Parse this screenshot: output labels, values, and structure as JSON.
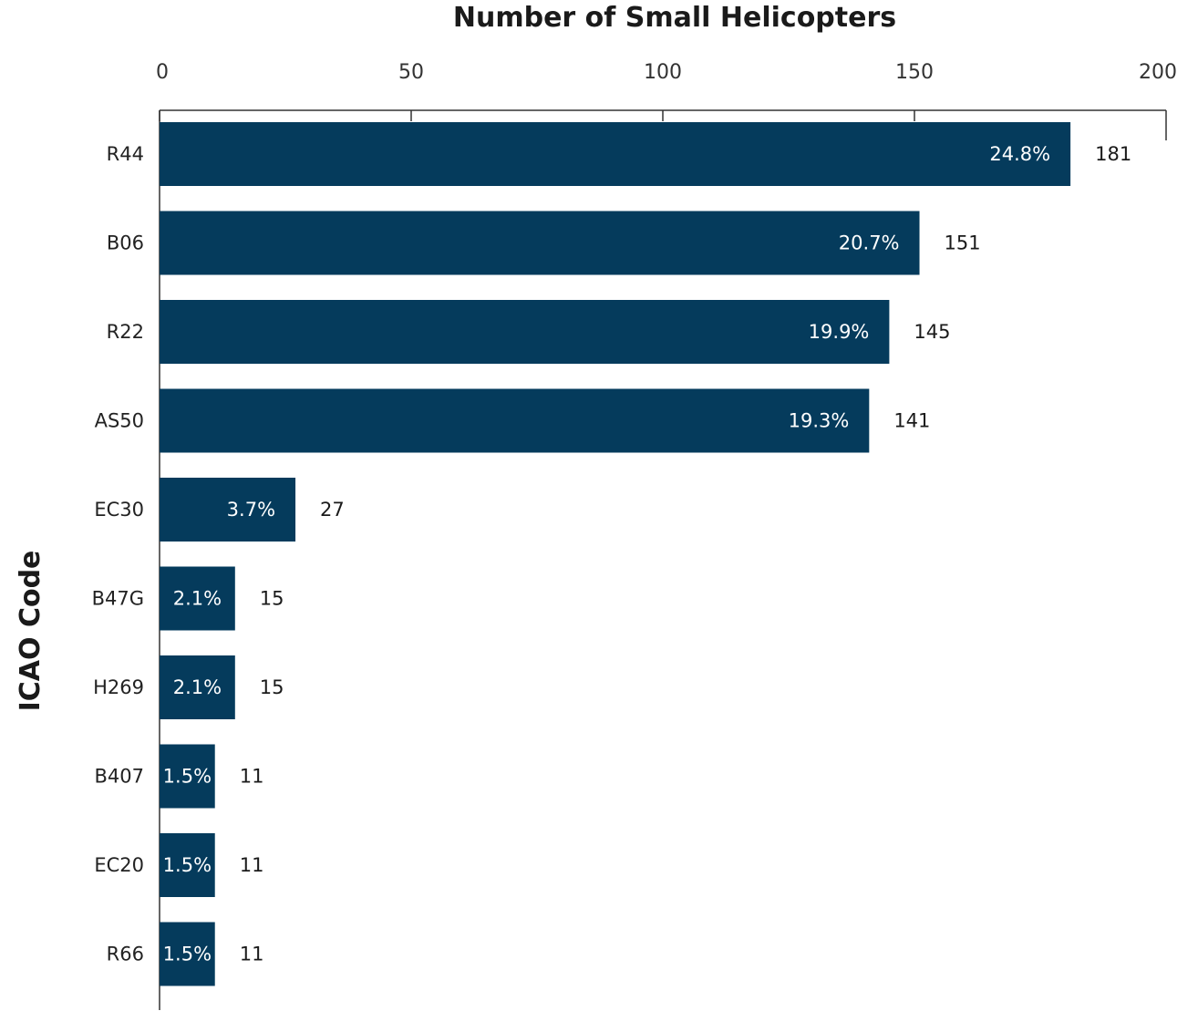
{
  "chart_data": {
    "type": "bar",
    "orientation": "horizontal",
    "xlabel": "Number of Small Helicopters",
    "ylabel": "ICAO Code",
    "xlim": [
      0,
      200
    ],
    "xticks": [
      0,
      50,
      100,
      150,
      200
    ],
    "x_axis_position": "top",
    "grid": false,
    "categories": [
      "R44",
      "B06",
      "R22",
      "AS50",
      "EC30",
      "B47G",
      "H269",
      "B407",
      "EC20",
      "R66"
    ],
    "values": [
      181,
      151,
      145,
      141,
      27,
      15,
      15,
      11,
      11,
      11
    ],
    "percent_labels": [
      "24.8%",
      "20.7%",
      "19.9%",
      "19.3%",
      "3.7%",
      "2.1%",
      "2.1%",
      "1.5%",
      "1.5%",
      "1.5%"
    ],
    "bar_color": "#053b5c"
  }
}
